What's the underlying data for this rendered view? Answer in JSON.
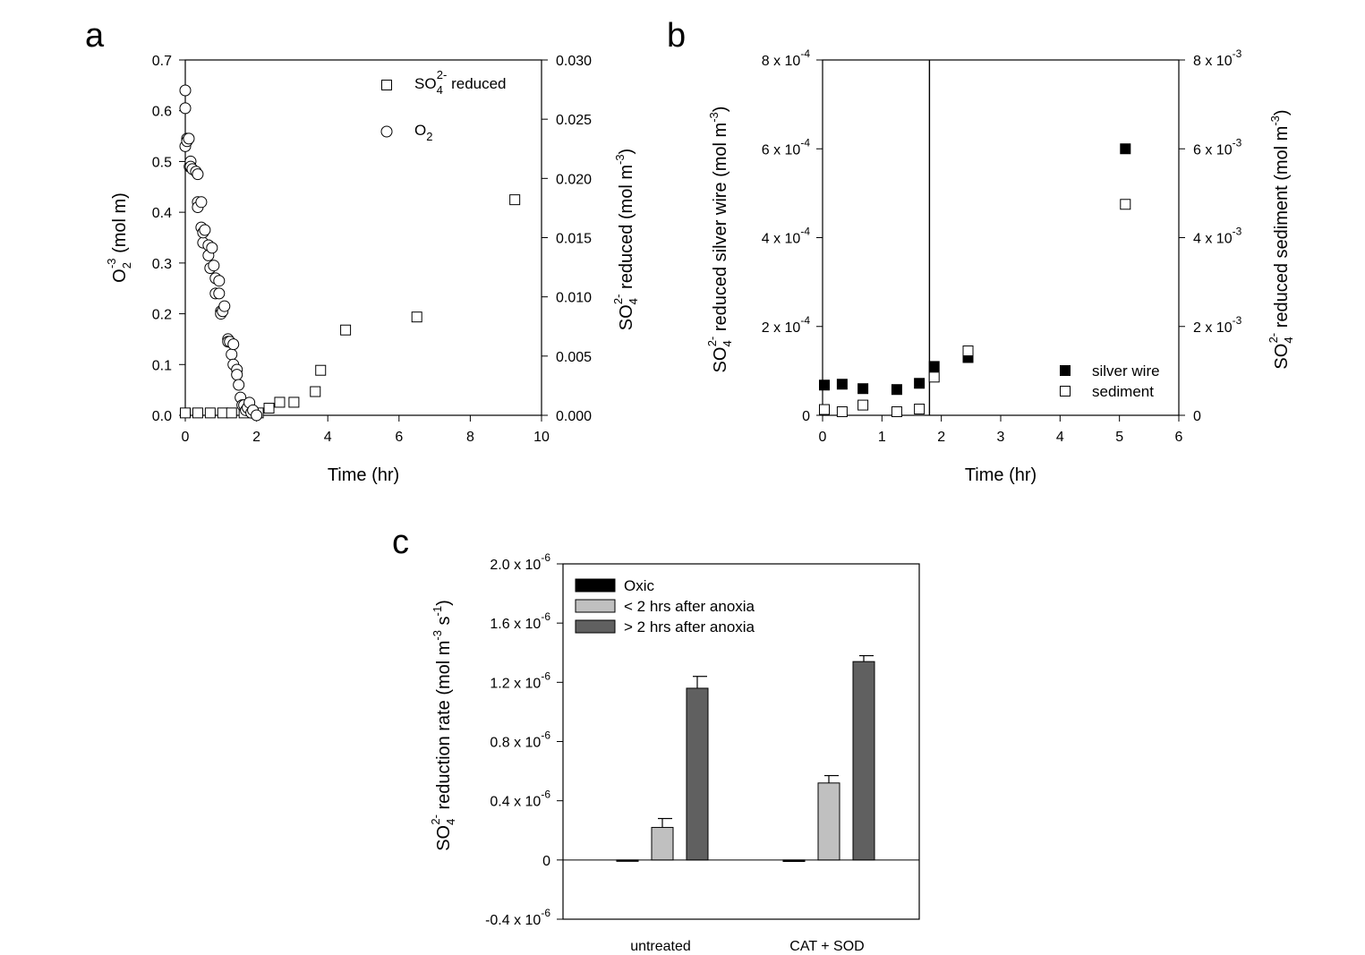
{
  "chart_data": [
    {
      "panel": "a",
      "type": "scatter",
      "xlabel": "Time (hr)",
      "ylabel": {
        "main": "O",
        "sub": "2",
        "rest": " (mol m",
        "sup": "-3",
        "end": ")"
      },
      "y2label": {
        "main": "SO",
        "sub": "4",
        "sup": "2-",
        "rest": " reduced (mol m",
        "sup2": "-3",
        "end": ")"
      },
      "xlim": [
        0,
        10
      ],
      "ylim": [
        0,
        0.7
      ],
      "y2lim": [
        0,
        0.03
      ],
      "xticks": [
        "0",
        "2",
        "4",
        "6",
        "8",
        "10"
      ],
      "yticks": [
        "0.0",
        "0.1",
        "0.2",
        "0.3",
        "0.4",
        "0.5",
        "0.6",
        "0.7"
      ],
      "y2ticks": [
        "0.000",
        "0.005",
        "0.010",
        "0.015",
        "0.020",
        "0.025",
        "0.030"
      ],
      "legend": [
        {
          "marker": "square-open",
          "main": "SO",
          "sub": "4",
          "sup": "2-",
          "rest": " reduced"
        },
        {
          "marker": "circle-open",
          "main": "O",
          "sub": "2",
          "sup": "",
          "rest": ""
        }
      ],
      "series": [
        {
          "axis": "right",
          "marker": "square-open",
          "x": [
            0.0,
            0.35,
            0.7,
            1.05,
            1.3,
            1.65,
            2.05,
            2.35,
            2.65,
            3.05,
            3.65,
            3.8,
            4.5,
            6.5,
            9.25
          ],
          "y": [
            0.0002,
            0.0002,
            0.0002,
            0.0002,
            0.0002,
            0.0002,
            0.0002,
            0.0006,
            0.0011,
            0.0011,
            0.002,
            0.0038,
            0.0072,
            0.0083,
            0.0182
          ]
        },
        {
          "axis": "left",
          "marker": "circle-open",
          "x": [
            0.0,
            0.0,
            0.0,
            0.05,
            0.05,
            0.1,
            0.12,
            0.15,
            0.15,
            0.2,
            0.3,
            0.35,
            0.35,
            0.35,
            0.45,
            0.45,
            0.5,
            0.5,
            0.55,
            0.65,
            0.65,
            0.7,
            0.75,
            0.8,
            0.85,
            0.85,
            0.95,
            0.95,
            1.0,
            1.0,
            1.05,
            1.1,
            1.2,
            1.2,
            1.25,
            1.3,
            1.35,
            1.35,
            1.45,
            1.45,
            1.5,
            1.55,
            1.6,
            1.65,
            1.7,
            1.75,
            1.8,
            1.85,
            1.9,
            2.0
          ],
          "y": [
            0.64,
            0.605,
            0.53,
            0.545,
            0.54,
            0.545,
            0.49,
            0.5,
            0.49,
            0.485,
            0.48,
            0.475,
            0.42,
            0.41,
            0.42,
            0.37,
            0.34,
            0.36,
            0.365,
            0.335,
            0.315,
            0.29,
            0.33,
            0.295,
            0.27,
            0.24,
            0.265,
            0.24,
            0.205,
            0.2,
            0.205,
            0.215,
            0.15,
            0.145,
            0.145,
            0.12,
            0.14,
            0.1,
            0.09,
            0.08,
            0.06,
            0.035,
            0.02,
            0.02,
            0.01,
            0.015,
            0.025,
            0.005,
            0.01,
            0.0
          ]
        }
      ]
    },
    {
      "panel": "b",
      "type": "scatter",
      "xlabel": "Time (hr)",
      "ylabel": {
        "main": "SO",
        "sub": "4",
        "sup": "2-",
        "rest": " reduced silver wire (mol m",
        "sup2": "-3",
        "end": ")"
      },
      "y2label": {
        "main": "SO",
        "sub": "4",
        "sup": "2-",
        "rest": " reduced sediment (mol m",
        "sup2": "-3",
        "end": ")"
      },
      "xlim": [
        0,
        6
      ],
      "ylim": [
        0,
        0.0008
      ],
      "y2lim": [
        0,
        0.008
      ],
      "xticks": [
        "0",
        "1",
        "2",
        "3",
        "4",
        "5",
        "6"
      ],
      "yticks": [
        {
          "base": "0",
          "exp": ""
        },
        {
          "base": "2 x 10",
          "exp": "-4"
        },
        {
          "base": "4 x 10",
          "exp": "-4"
        },
        {
          "base": "6 x 10",
          "exp": "-4"
        },
        {
          "base": "8 x 10",
          "exp": "-4"
        }
      ],
      "y2ticks": [
        {
          "base": "0",
          "exp": ""
        },
        {
          "base": "2 x 10",
          "exp": "-3"
        },
        {
          "base": "4 x 10",
          "exp": "-3"
        },
        {
          "base": "6 x 10",
          "exp": "-3"
        },
        {
          "base": "8 x 10",
          "exp": "-3"
        }
      ],
      "vertical_line_x": 1.8,
      "legend": [
        {
          "marker": "square-filled",
          "label": "silver wire"
        },
        {
          "marker": "square-open",
          "label": "sediment"
        }
      ],
      "series": [
        {
          "axis": "left",
          "marker": "square-filled",
          "name": "silver wire",
          "x": [
            0.03,
            0.33,
            0.68,
            1.25,
            1.63,
            1.88,
            2.45,
            5.1
          ],
          "y": [
            6.8e-05,
            7e-05,
            6e-05,
            5.8e-05,
            7.2e-05,
            0.00011,
            0.00013,
            0.0006
          ]
        },
        {
          "axis": "right",
          "marker": "square-open",
          "name": "sediment",
          "x": [
            0.03,
            0.33,
            0.68,
            1.25,
            1.63,
            1.88,
            2.45,
            5.1
          ],
          "y": [
            0.00013,
            8e-05,
            0.00023,
            8e-05,
            0.00014,
            0.00086,
            0.00145,
            0.00475
          ]
        }
      ]
    },
    {
      "panel": "c",
      "type": "bar",
      "ylabel": {
        "main": "SO",
        "sub": "4",
        "sup": "2-",
        "rest": " reduction rate (mol m",
        "sup2": "-3",
        "mid": " s",
        "sup3": "-1",
        "end": ")"
      },
      "categories": [
        "untreated",
        "CAT + SOD"
      ],
      "ylim": [
        -4e-07,
        2e-06
      ],
      "yticks": [
        {
          "base": "-0.4 x 10",
          "exp": "-6"
        },
        {
          "base": "0",
          "exp": ""
        },
        {
          "base": "0.4 x 10",
          "exp": "-6"
        },
        {
          "base": "0.8 x 10",
          "exp": "-6"
        },
        {
          "base": "1.2 x 10",
          "exp": "-6"
        },
        {
          "base": "1.6 x 10",
          "exp": "-6"
        },
        {
          "base": "2.0 x 10",
          "exp": "-6"
        }
      ],
      "legend_placement": "top-left",
      "series": [
        {
          "name": "Oxic",
          "color": "#000000",
          "values": [
            -5e-09,
            -1e-08
          ],
          "errors": [
            0,
            0
          ]
        },
        {
          "name": "< 2 hrs after anoxia",
          "color": "#c0c0c0",
          "values": [
            2.2e-07,
            5.2e-07
          ],
          "errors": [
            6e-08,
            5e-08
          ]
        },
        {
          "name": "> 2 hrs after anoxia",
          "color": "#606060",
          "values": [
            1.16e-06,
            1.34e-06
          ],
          "errors": [
            8e-08,
            4e-08
          ]
        }
      ]
    }
  ],
  "panel_labels": [
    "a",
    "b",
    "c"
  ]
}
